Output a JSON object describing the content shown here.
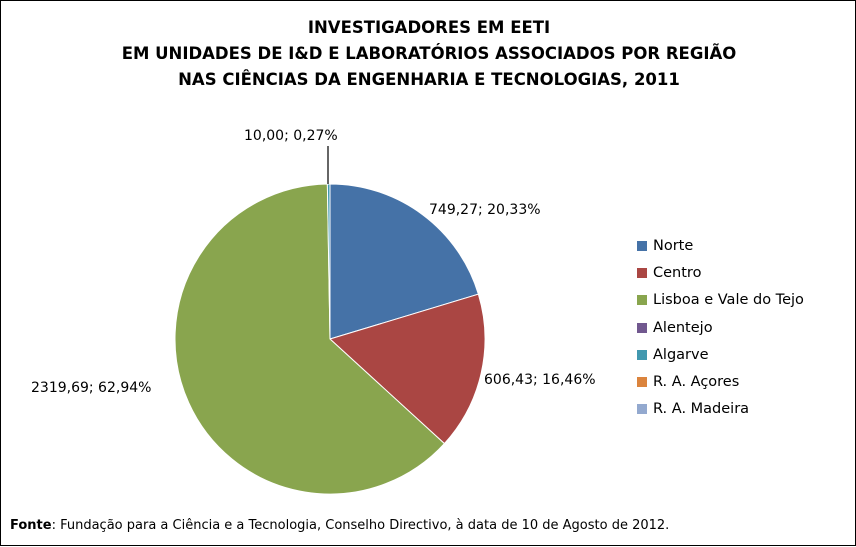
{
  "chart_data": {
    "type": "pie",
    "title_lines": [
      "INVESTIGADORES EM EETI",
      "EM UNIDADES DE I&D E LABORATÓRIOS ASSOCIADOS POR REGIÃO",
      "NAS CIÊNCIAS DA ENGENHARIA E TECNOLOGIAS, 2011"
    ],
    "categories": [
      "Norte",
      "Centro",
      "Lisboa e Vale do Tejo",
      "Alentejo",
      "Algarve",
      "R. A. Açores",
      "R. A. Madeira"
    ],
    "values": [
      749.27,
      606.43,
      2319.69,
      0,
      10.0,
      0,
      0
    ],
    "colors": [
      "#4572A7",
      "#AA4643",
      "#89A54E",
      "#71588F",
      "#4198AF",
      "#DB843D",
      "#93A9CF"
    ],
    "data_labels": [
      "749,27; 20,33%",
      "606,43; 16,46%",
      "2319,69; 62,94%",
      "",
      "10,00; 0,27%",
      "",
      ""
    ],
    "legend_position": "right"
  },
  "source": {
    "label": "Fonte",
    "text": ": Fundação para a Ciência e a Tecnologia, Conselho Directivo, à data de 10 de Agosto de 2012."
  }
}
